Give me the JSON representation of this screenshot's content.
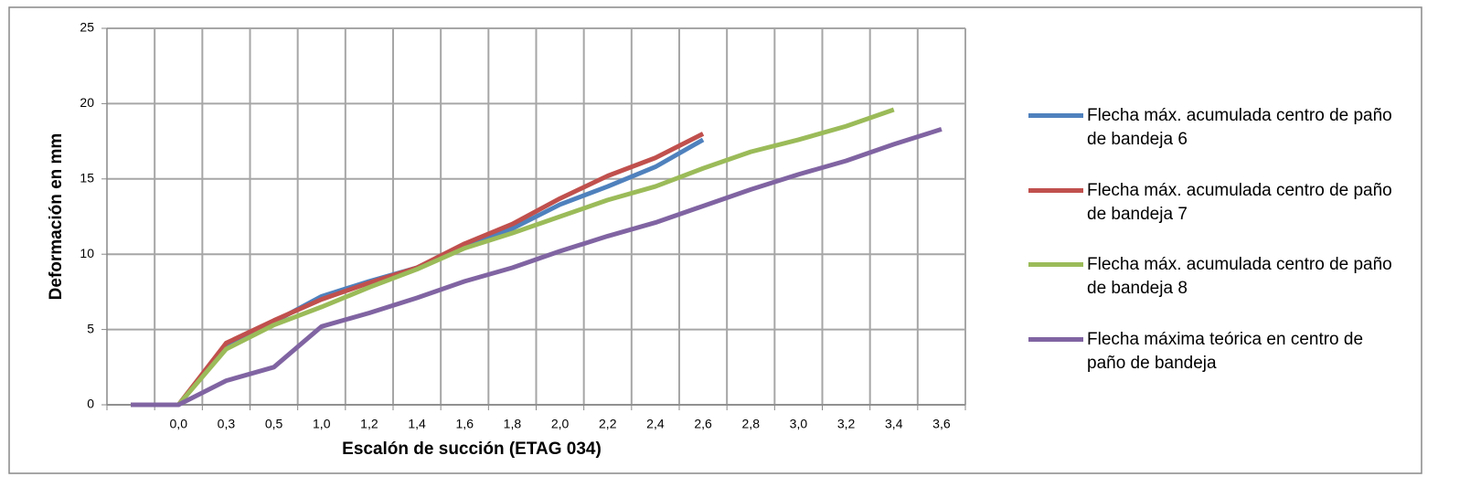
{
  "chart_data": {
    "type": "line",
    "xlabel": "Escalón de succión (ETAG 034)",
    "ylabel": "Deformación en mm",
    "categories": [
      null,
      "0,0",
      "0,3",
      "0,5",
      "1,0",
      "1,2",
      "1,4",
      "1,6",
      "1,8",
      "2,0",
      "2,2",
      "2,4",
      "2,6",
      "2,8",
      "3,0",
      "3,2",
      "3,4",
      "3,6"
    ],
    "series": [
      {
        "name": "Flecha máx. acumulada centro de paño de bandeja 6",
        "color": "#4f81bd",
        "values": [
          0,
          0,
          4.0,
          5.5,
          7.2,
          8.2,
          9.1,
          10.5,
          11.7,
          13.3,
          14.5,
          15.8,
          17.6,
          null,
          null,
          null,
          null,
          null
        ]
      },
      {
        "name": "Flecha máx. acumulada centro de paño de bandeja 7",
        "color": "#c0504d",
        "values": [
          0,
          0,
          4.1,
          5.6,
          7.0,
          8.1,
          9.1,
          10.7,
          12.0,
          13.7,
          15.2,
          16.4,
          18.0,
          null,
          null,
          null,
          null,
          null
        ]
      },
      {
        "name": "Flecha máx. acumulada centro de paño de bandeja 8",
        "color": "#9bbb59",
        "values": [
          0,
          0,
          3.7,
          5.3,
          6.5,
          7.8,
          9.0,
          10.4,
          11.4,
          12.5,
          13.6,
          14.5,
          15.7,
          16.8,
          17.6,
          18.5,
          19.6,
          null
        ]
      },
      {
        "name": "Flecha máxima teórica en centro de paño de bandeja",
        "color": "#8064a2",
        "values": [
          0,
          0,
          1.6,
          2.5,
          5.2,
          6.1,
          7.1,
          8.2,
          9.1,
          10.2,
          11.2,
          12.1,
          13.2,
          14.3,
          15.3,
          16.2,
          17.3,
          18.3
        ]
      }
    ],
    "ylim": [
      0,
      25
    ],
    "yticks": [
      0,
      5,
      10,
      15,
      20,
      25
    ],
    "grid": true,
    "legend": "right"
  }
}
